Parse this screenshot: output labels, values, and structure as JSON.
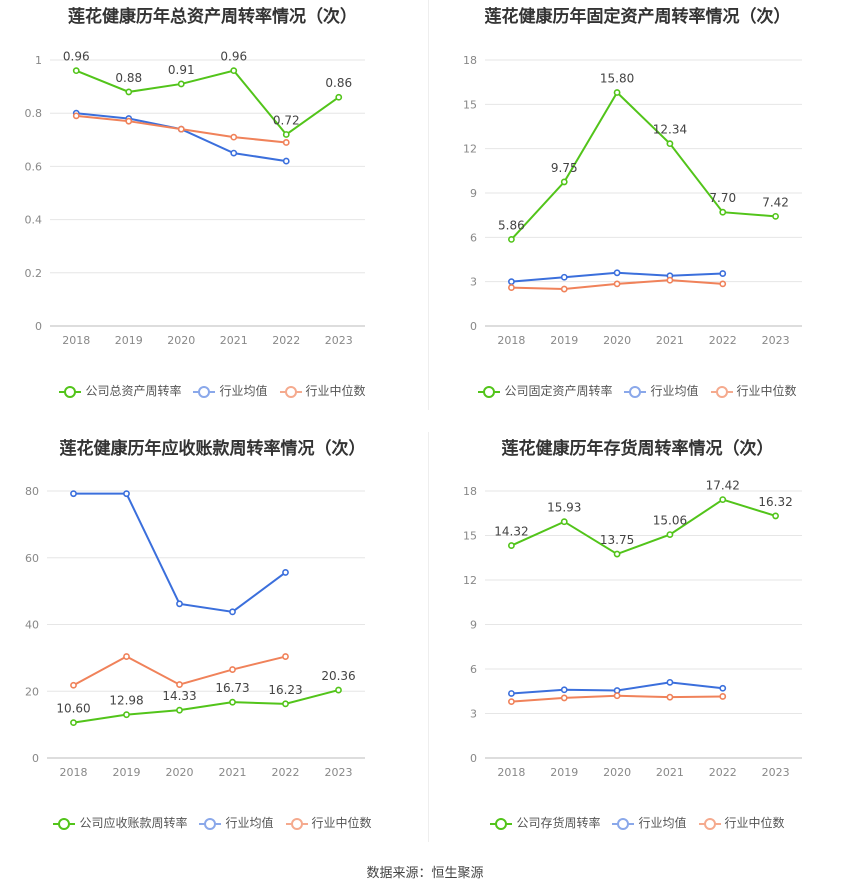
{
  "source": "数据来源：恒生聚源",
  "chart_data": [
    {
      "type": "line",
      "title": "莲花健康历年总资产周转率情况（次）",
      "categories": [
        "2018",
        "2019",
        "2020",
        "2021",
        "2022",
        "2023"
      ],
      "ylim": [
        0,
        1
      ],
      "yticks": [
        "0",
        "0.2",
        "0.4",
        "0.6",
        "0.8",
        "1"
      ],
      "ytick_values": [
        0,
        0.2,
        0.4,
        0.6,
        0.8,
        1
      ],
      "series": [
        {
          "name": "公司总资产周转率",
          "color": "#52c41a",
          "values": [
            0.96,
            0.88,
            0.91,
            0.96,
            0.72,
            0.86
          ],
          "labels": [
            "0.96",
            "0.88",
            "0.91",
            "0.96",
            "0.72",
            "0.86"
          ]
        },
        {
          "name": "行业均值",
          "color": "#3b6fdc",
          "values": [
            0.8,
            0.78,
            0.74,
            0.65,
            0.62,
            null
          ]
        },
        {
          "name": "行业中位数",
          "color": "#f0825a",
          "values": [
            0.79,
            0.77,
            0.74,
            0.71,
            0.69,
            null
          ]
        }
      ]
    },
    {
      "type": "line",
      "title": "莲花健康历年固定资产周转率情况（次）",
      "categories": [
        "2018",
        "2019",
        "2020",
        "2021",
        "2022",
        "2023"
      ],
      "ylim": [
        0,
        18
      ],
      "yticks": [
        "0",
        "3",
        "6",
        "9",
        "12",
        "15",
        "18"
      ],
      "ytick_values": [
        0,
        3,
        6,
        9,
        12,
        15,
        18
      ],
      "series": [
        {
          "name": "公司固定资产周转率",
          "color": "#52c41a",
          "values": [
            5.86,
            9.75,
            15.8,
            12.34,
            7.7,
            7.42
          ],
          "labels": [
            "5.86",
            "9.75",
            "15.80",
            "12.34",
            "7.70",
            "7.42"
          ]
        },
        {
          "name": "行业均值",
          "color": "#3b6fdc",
          "values": [
            3.0,
            3.3,
            3.6,
            3.4,
            3.55,
            null
          ]
        },
        {
          "name": "行业中位数",
          "color": "#f0825a",
          "values": [
            2.6,
            2.5,
            2.85,
            3.1,
            2.85,
            null
          ]
        }
      ]
    },
    {
      "type": "line",
      "title": "莲花健康历年应收账款周转率情况（次）",
      "categories": [
        "2018",
        "2019",
        "2020",
        "2021",
        "2022",
        "2023"
      ],
      "ylim": [
        0,
        80
      ],
      "yticks": [
        "0",
        "20",
        "40",
        "60",
        "80"
      ],
      "ytick_values": [
        0,
        20,
        40,
        60,
        80
      ],
      "series": [
        {
          "name": "公司应收账款周转率",
          "color": "#52c41a",
          "values": [
            10.6,
            12.98,
            14.33,
            16.73,
            16.23,
            20.36
          ],
          "labels": [
            "10.60",
            "12.98",
            "14.33",
            "16.73",
            "16.23",
            "20.36"
          ]
        },
        {
          "name": "行业均值",
          "color": "#3b6fdc",
          "values": [
            79.2,
            79.2,
            46.2,
            43.8,
            55.6,
            null
          ]
        },
        {
          "name": "行业中位数",
          "color": "#f0825a",
          "values": [
            21.8,
            30.4,
            22.0,
            26.5,
            30.4,
            null
          ]
        }
      ]
    },
    {
      "type": "line",
      "title": "莲花健康历年存货周转率情况（次）",
      "categories": [
        "2018",
        "2019",
        "2020",
        "2021",
        "2022",
        "2023"
      ],
      "ylim": [
        0,
        18
      ],
      "yticks": [
        "0",
        "3",
        "6",
        "9",
        "12",
        "15",
        "18"
      ],
      "ytick_values": [
        0,
        3,
        6,
        9,
        12,
        15,
        18
      ],
      "series": [
        {
          "name": "公司存货周转率",
          "color": "#52c41a",
          "values": [
            14.32,
            15.93,
            13.75,
            15.06,
            17.42,
            16.32
          ],
          "labels": [
            "14.32",
            "15.93",
            "13.75",
            "15.06",
            "17.42",
            "16.32"
          ]
        },
        {
          "name": "行业均值",
          "color": "#3b6fdc",
          "values": [
            4.35,
            4.6,
            4.55,
            5.1,
            4.7,
            null
          ]
        },
        {
          "name": "行业中位数",
          "color": "#f0825a",
          "values": [
            3.8,
            4.05,
            4.2,
            4.1,
            4.15,
            null
          ]
        }
      ]
    }
  ]
}
